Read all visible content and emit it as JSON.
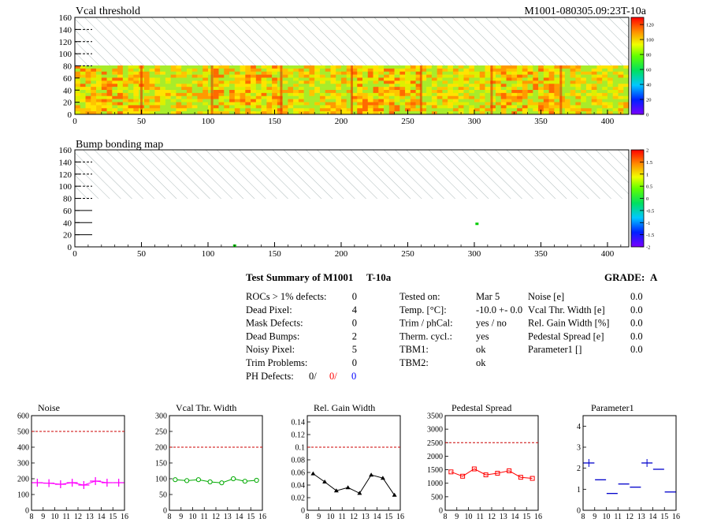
{
  "header": {
    "map1_title": "Vcal threshold",
    "map1_id": "M1001-080305.09:23T-10a",
    "map2_title": "Bump bonding map"
  },
  "maps": {
    "x_ticks": [
      "0",
      "50",
      "100",
      "150",
      "200",
      "250",
      "300",
      "350",
      "400"
    ],
    "y_ticks": [
      "0",
      "20",
      "40",
      "60",
      "80",
      "100",
      "120",
      "140",
      "160"
    ],
    "xlim": [
      0,
      416
    ],
    "ylim": [
      0,
      160
    ],
    "hatch_region_y": [
      80,
      160
    ],
    "map1_colorbar_ticks": [
      "0",
      "20",
      "40",
      "60",
      "80",
      "100",
      "120"
    ],
    "map2_colorbar_ticks": [
      "-2",
      "-1.5",
      "-1",
      "-0.5",
      "0",
      "0.5",
      "1",
      "1.5",
      "2"
    ],
    "map2_points": [
      {
        "x": 120,
        "y": 2
      },
      {
        "x": 302,
        "y": 38
      }
    ]
  },
  "summary": {
    "title": "Test Summary of M1001",
    "suffix": "T-10a",
    "grade_label": "GRADE:",
    "grade": "A",
    "left": [
      {
        "label": "ROCs > 1% defects:",
        "value": "0"
      },
      {
        "label": "Dead Pixel:",
        "value": "4"
      },
      {
        "label": "Mask Defects:",
        "value": "0"
      },
      {
        "label": "Dead Bumps:",
        "value": "2"
      },
      {
        "label": "Noisy Pixel:",
        "value": "5"
      },
      {
        "label": "Trim Problems:",
        "value": "0"
      }
    ],
    "ph_label": "PH Defects:",
    "ph_values": [
      {
        "value": "0/",
        "color": "#000000"
      },
      {
        "value": "0/",
        "color": "#ff0000"
      },
      {
        "value": "0",
        "color": "#0000ff"
      }
    ],
    "middle": [
      {
        "label": "Tested on:",
        "value": "Mar 5"
      },
      {
        "label": "Temp. [°C]:",
        "value": "-10.0 +- 0.0"
      },
      {
        "label": "Trim / phCal:",
        "value": "yes / no"
      },
      {
        "label": "Therm. cycl.:",
        "value": "yes"
      },
      {
        "label": "TBM1:",
        "value": "ok"
      },
      {
        "label": "TBM2:",
        "value": "ok"
      }
    ],
    "right": [
      {
        "label": "Noise [e]",
        "value": "0.0"
      },
      {
        "label": "Vcal Thr. Width [e]",
        "value": "0.0"
      },
      {
        "label": "Rel. Gain Width [%]",
        "value": "0.0"
      },
      {
        "label": "Pedestal Spread [e]",
        "value": "0.0"
      },
      {
        "label": "Parameter1 []",
        "value": "0.0"
      }
    ]
  },
  "chart_data": [
    {
      "type": "scatter",
      "title": "Noise",
      "color": "#ff00ff",
      "style": "cross",
      "x": [
        8.5,
        9.5,
        10.5,
        11.5,
        12.5,
        13.5,
        14.5,
        15.5
      ],
      "values": [
        175,
        172,
        165,
        175,
        160,
        185,
        175,
        175
      ],
      "xlim": [
        8,
        16
      ],
      "ylim": [
        0,
        600
      ],
      "threshold": 500,
      "x_ticks": [
        "8",
        "9",
        "10",
        "11",
        "12",
        "13",
        "14",
        "15",
        "16"
      ],
      "y_ticks": [
        "0",
        "100",
        "200",
        "300",
        "400",
        "500",
        "600"
      ],
      "y_tick_values": [
        0,
        100,
        200,
        300,
        400,
        500,
        600
      ]
    },
    {
      "type": "line",
      "title": "Vcal Thr. Width",
      "color": "#00aa00",
      "style": "circle",
      "x": [
        8.5,
        9.5,
        10.5,
        11.5,
        12.5,
        13.5,
        14.5,
        15.5
      ],
      "values": [
        97,
        94,
        97,
        90,
        87,
        100,
        92,
        95
      ],
      "xlim": [
        8,
        16
      ],
      "ylim": [
        0,
        300
      ],
      "threshold": 200,
      "x_ticks": [
        "8",
        "9",
        "10",
        "11",
        "12",
        "13",
        "14",
        "15",
        "16"
      ],
      "y_ticks": [
        "0",
        "50",
        "100",
        "150",
        "200",
        "250",
        "300"
      ],
      "y_tick_values": [
        0,
        50,
        100,
        150,
        200,
        250,
        300
      ]
    },
    {
      "type": "line",
      "title": "Rel. Gain Width",
      "color": "#000000",
      "style": "triangle",
      "x": [
        8.5,
        9.5,
        10.5,
        11.5,
        12.5,
        13.5,
        14.5,
        15.5
      ],
      "values": [
        0.058,
        0.045,
        0.031,
        0.036,
        0.027,
        0.056,
        0.051,
        0.024
      ],
      "xlim": [
        8,
        16
      ],
      "ylim": [
        0,
        0.15
      ],
      "threshold": 0.1,
      "x_ticks": [
        "8",
        "9",
        "10",
        "11",
        "12",
        "13",
        "14",
        "15",
        "16"
      ],
      "y_ticks": [
        "0",
        "0.02",
        "0.04",
        "0.06",
        "0.08",
        "0.1",
        "0.12",
        "0.14"
      ],
      "y_tick_values": [
        0,
        0.02,
        0.04,
        0.06,
        0.08,
        0.1,
        0.12,
        0.14
      ]
    },
    {
      "type": "line",
      "title": "Pedestal Spread",
      "color": "#ff0000",
      "style": "square",
      "x": [
        8.5,
        9.5,
        10.5,
        11.5,
        12.5,
        13.5,
        14.5,
        15.5
      ],
      "values": [
        1420,
        1260,
        1530,
        1310,
        1370,
        1460,
        1220,
        1180
      ],
      "xlim": [
        8,
        16
      ],
      "ylim": [
        0,
        3500
      ],
      "threshold": 2500,
      "x_ticks": [
        "8",
        "9",
        "10",
        "11",
        "12",
        "13",
        "14",
        "15",
        "16"
      ],
      "y_ticks": [
        "0",
        "500",
        "1000",
        "1500",
        "2000",
        "2500",
        "3000",
        "3500"
      ],
      "y_tick_values": [
        0,
        500,
        1000,
        1500,
        2000,
        2500,
        3000,
        3500
      ]
    },
    {
      "type": "scatter",
      "title": "Parameter1",
      "color": "#0000cc",
      "style": "hbar",
      "x": [
        8.5,
        9.5,
        10.5,
        11.5,
        12.5,
        13.5,
        14.5,
        15.5
      ],
      "values": [
        2.25,
        1.45,
        0.8,
        1.25,
        1.1,
        2.25,
        1.95,
        0.87
      ],
      "xlim": [
        8,
        16
      ],
      "ylim": [
        0,
        4.5
      ],
      "threshold": null,
      "x_ticks": [
        "8",
        "9",
        "10",
        "11",
        "12",
        "13",
        "14",
        "15",
        "16"
      ],
      "y_ticks": [
        "0",
        "1",
        "2",
        "3",
        "4"
      ],
      "y_tick_values": [
        0,
        1,
        2,
        3,
        4
      ]
    }
  ]
}
